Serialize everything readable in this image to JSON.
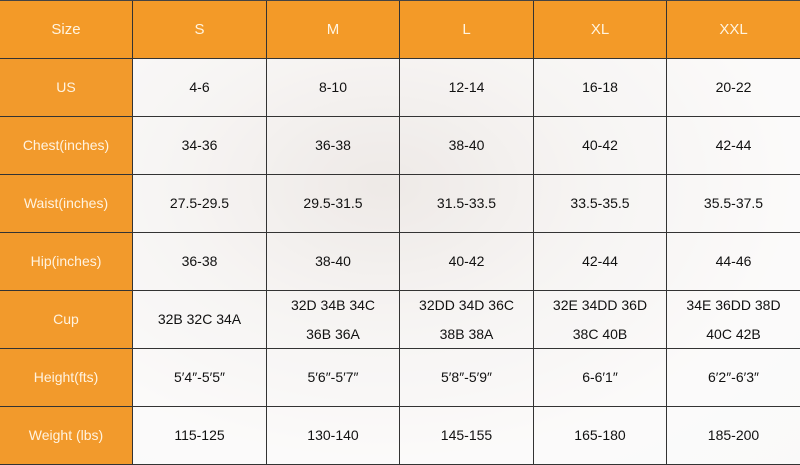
{
  "colors": {
    "accent": "#f39a28"
  },
  "table": {
    "headers": [
      "Size",
      "S",
      "M",
      "L",
      "XL",
      "XXL"
    ],
    "rows": [
      {
        "label": "US",
        "values": [
          "4-6",
          "8-10",
          "12-14",
          "16-18",
          "20-22"
        ]
      },
      {
        "label": "Chest(inches)",
        "values": [
          "34-36",
          "36-38",
          "38-40",
          "40-42",
          "42-44"
        ]
      },
      {
        "label": "Waist(inches)",
        "values": [
          "27.5-29.5",
          "29.5-31.5",
          "31.5-33.5",
          "33.5-35.5",
          "35.5-37.5"
        ]
      },
      {
        "label": "Hip(inches)",
        "values": [
          "36-38",
          "38-40",
          "40-42",
          "42-44",
          "44-46"
        ]
      },
      {
        "label": "Cup",
        "values": [
          "32B 32C 34A",
          "32D 34B 34C\n36B 36A",
          "32DD 34D 36C\n38B 38A",
          "32E 34DD 36D\n38C 40B",
          "34E 36DD 38D\n40C 42B"
        ]
      },
      {
        "label": "Height(fts)",
        "values": [
          "5′4″-5′5″",
          "5′6″-5′7″",
          "5′8″-5′9″",
          "6-6′1″",
          "6′2″-6′3″"
        ]
      },
      {
        "label": "Weight (lbs)",
        "values": [
          "115-125",
          "130-140",
          "145-155",
          "165-180",
          "185-200"
        ]
      }
    ]
  }
}
